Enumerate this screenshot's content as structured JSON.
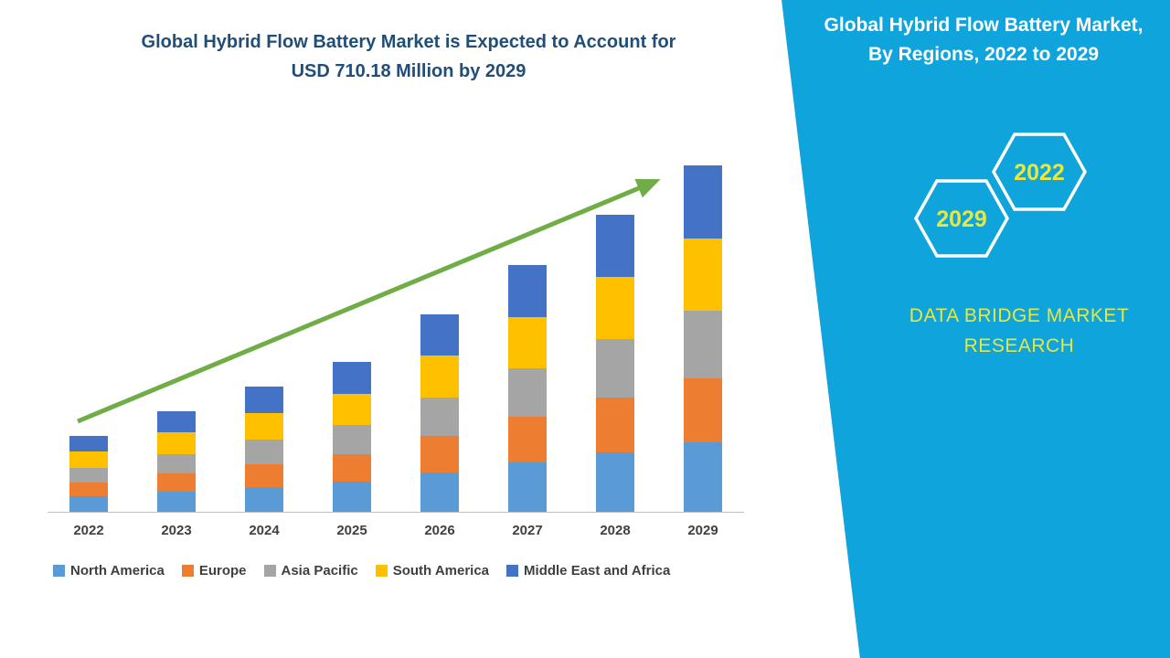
{
  "left": {
    "title_line1": "Global Hybrid Flow Battery Market is Expected to Account for",
    "title_line2": "USD 710.18 Million by 2029"
  },
  "chart_data": {
    "type": "bar",
    "stacked": true,
    "title": "Global Hybrid Flow Battery Market is Expected to Account for USD 710.18 Million by 2029",
    "xlabel": "",
    "ylabel": "",
    "unit": "USD Million",
    "ylim": [
      0,
      750
    ],
    "grid": false,
    "legend_position": "bottom",
    "trend_arrow": true,
    "trend_arrow_color": "#70AD47",
    "categories": [
      "2022",
      "2023",
      "2024",
      "2025",
      "2026",
      "2027",
      "2028",
      "2029"
    ],
    "totals": [
      155,
      207,
      256,
      307,
      405,
      507,
      609,
      710.18
    ],
    "series": [
      {
        "name": "North America",
        "color": "#5B9BD5",
        "values": [
          31,
          41,
          51,
          61,
          81,
          101,
          122,
          142
        ]
      },
      {
        "name": "Europe",
        "color": "#ED7D31",
        "values": [
          29,
          38,
          47,
          57,
          75,
          94,
          113,
          131.4
        ]
      },
      {
        "name": "Asia Pacific",
        "color": "#A5A5A5",
        "values": [
          30,
          40,
          50,
          60,
          79,
          99,
          119,
          138.5
        ]
      },
      {
        "name": "South America",
        "color": "#FFC000",
        "values": [
          33,
          44,
          54,
          64,
          85,
          106,
          128,
          149.1
        ]
      },
      {
        "name": "Middle East and Africa",
        "color": "#4472C4",
        "values": [
          32,
          44,
          54,
          65,
          85,
          107,
          127,
          149.18
        ]
      }
    ]
  },
  "panel": {
    "bg_color": "#0FA4DC",
    "accent_color": "#E9E73C",
    "title_line1": "Global Hybrid Flow Battery Market,",
    "title_line2": "By Regions, 2022 to 2029",
    "hexagons": [
      {
        "label": "2029"
      },
      {
        "label": "2022"
      }
    ],
    "brand_line1": "DATA BRIDGE MARKET",
    "brand_line2": "RESEARCH"
  }
}
